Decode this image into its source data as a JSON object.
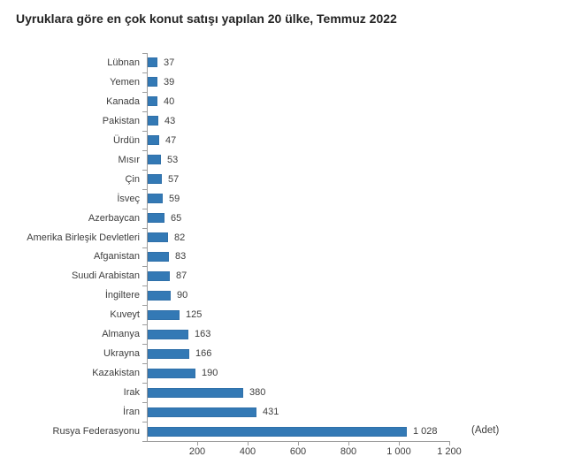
{
  "title": "Uyruklara göre en çok konut satışı yapılan 20 ülke, Temmuz 2022",
  "unit_label": "(Adet)",
  "colors": {
    "bar": "#3379b5",
    "axis": "#9d9d9d",
    "text": "#3d3d3d",
    "title": "#232323",
    "background": "#ffffff"
  },
  "chart_data": {
    "type": "bar",
    "orientation": "horizontal",
    "title": "Uyruklara göre en çok konut satışı yapılan 20 ülke, Temmuz 2022",
    "categories": [
      "Lübnan",
      "Yemen",
      "Kanada",
      "Pakistan",
      "Ürdün",
      "Mısır",
      "Çin",
      "İsveç",
      "Azerbaycan",
      "Amerika Birleşik Devletleri",
      "Afganistan",
      "Suudi Arabistan",
      "İngiltere",
      "Kuveyt",
      "Almanya",
      "Ukrayna",
      "Kazakistan",
      "Irak",
      "İran",
      "Rusya Federasyonu"
    ],
    "values": [
      37,
      39,
      40,
      43,
      47,
      53,
      57,
      59,
      65,
      82,
      83,
      87,
      90,
      125,
      163,
      166,
      190,
      380,
      431,
      1028
    ],
    "value_labels": [
      "37",
      "39",
      "40",
      "43",
      "47",
      "53",
      "57",
      "59",
      "65",
      "82",
      "83",
      "87",
      "90",
      "125",
      "163",
      "166",
      "190",
      "380",
      "431",
      "1 028"
    ],
    "xlabel": "(Adet)",
    "ylabel": "",
    "xlim": [
      0,
      1200
    ],
    "xticks": [
      200,
      400,
      600,
      800,
      1000,
      1200
    ],
    "xtick_labels": [
      "200",
      "400",
      "600",
      "800",
      "1 000",
      "1 200"
    ],
    "grid": false,
    "legend": "none",
    "bar_color": "#3379b5"
  }
}
